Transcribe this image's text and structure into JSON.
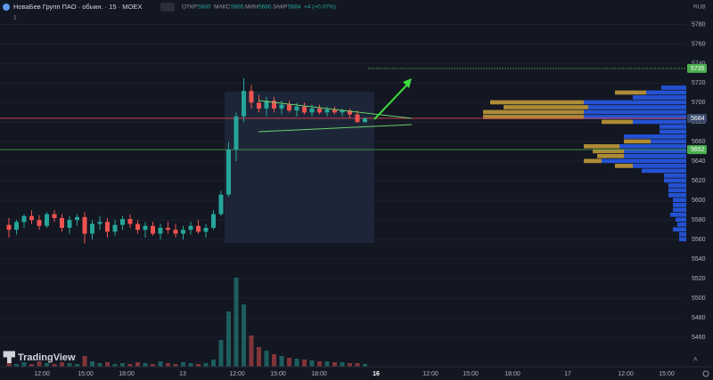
{
  "header": {
    "symbol": "НоваБев Групп ПАО · обыкн. · 15 · MOEX",
    "open_label": "ОТКР",
    "open": 5680,
    "high_label": "МАКС",
    "high": 5685,
    "low_label": "МИН",
    "low": 5680,
    "close_label": "ЗАКР",
    "close": 5684,
    "change": "+4 (+0.07%)",
    "indicator_count": "1",
    "currency": "RUB",
    "logo": "TradingView",
    "auto": "A"
  },
  "chart_data": {
    "type": "candlestick",
    "ohlc": [
      [
        5575,
        5582,
        5562,
        5570
      ],
      [
        5570,
        5580,
        5565,
        5578
      ],
      [
        5578,
        5586,
        5572,
        5584
      ],
      [
        5584,
        5590,
        5576,
        5580
      ],
      [
        5580,
        5585,
        5570,
        5574
      ],
      [
        5574,
        5588,
        5572,
        5586
      ],
      [
        5586,
        5590,
        5578,
        5582
      ],
      [
        5582,
        5586,
        5568,
        5572
      ],
      [
        5572,
        5584,
        5566,
        5580
      ],
      [
        5580,
        5586,
        5574,
        5583
      ],
      [
        5583,
        5588,
        5556,
        5566
      ],
      [
        5566,
        5580,
        5560,
        5576
      ],
      [
        5576,
        5584,
        5570,
        5578
      ],
      [
        5578,
        5582,
        5562,
        5568
      ],
      [
        5568,
        5580,
        5564,
        5575
      ],
      [
        5575,
        5584,
        5570,
        5581
      ],
      [
        5581,
        5586,
        5572,
        5576
      ],
      [
        5576,
        5580,
        5566,
        5570
      ],
      [
        5570,
        5578,
        5562,
        5574
      ],
      [
        5574,
        5578,
        5564,
        5566
      ],
      [
        5566,
        5576,
        5560,
        5572
      ],
      [
        5572,
        5578,
        5566,
        5570
      ],
      [
        5570,
        5576,
        5562,
        5566
      ],
      [
        5566,
        5574,
        5560,
        5570
      ],
      [
        5570,
        5578,
        5565,
        5574
      ],
      [
        5574,
        5580,
        5566,
        5568
      ],
      [
        5568,
        5576,
        5562,
        5572
      ],
      [
        5572,
        5590,
        5570,
        5586
      ],
      [
        5586,
        5610,
        5584,
        5606
      ],
      [
        5606,
        5660,
        5604,
        5652
      ],
      [
        5652,
        5690,
        5640,
        5686
      ],
      [
        5686,
        5725,
        5680,
        5712
      ],
      [
        5712,
        5718,
        5694,
        5700
      ],
      [
        5700,
        5708,
        5690,
        5694
      ],
      [
        5694,
        5706,
        5686,
        5702
      ],
      [
        5702,
        5706,
        5690,
        5694
      ],
      [
        5694,
        5702,
        5688,
        5698
      ],
      [
        5698,
        5702,
        5690,
        5692
      ],
      [
        5692,
        5700,
        5686,
        5696
      ],
      [
        5696,
        5700,
        5688,
        5690
      ],
      [
        5690,
        5698,
        5686,
        5694
      ],
      [
        5694,
        5698,
        5688,
        5690
      ],
      [
        5690,
        5696,
        5686,
        5693
      ],
      [
        5693,
        5696,
        5688,
        5690
      ],
      [
        5690,
        5694,
        5686,
        5692
      ],
      [
        5692,
        5694,
        5684,
        5688
      ],
      [
        5688,
        5692,
        5680,
        5680
      ],
      [
        5680,
        5685,
        5680,
        5684
      ]
    ],
    "volume": [
      4,
      3,
      5,
      3,
      6,
      4,
      3,
      5,
      4,
      3,
      12,
      6,
      4,
      5,
      3,
      4,
      3,
      5,
      4,
      3,
      6,
      4,
      3,
      5,
      4,
      3,
      4,
      8,
      30,
      62,
      100,
      70,
      35,
      22,
      18,
      14,
      12,
      10,
      9,
      8,
      7,
      6,
      6,
      5,
      5,
      4,
      4,
      3
    ],
    "volume_profile": [
      [
        5715,
        28,
        0
      ],
      [
        5710,
        45,
        35
      ],
      [
        5705,
        60,
        0
      ],
      [
        5700,
        115,
        105
      ],
      [
        5695,
        110,
        95
      ],
      [
        5690,
        115,
        113
      ],
      [
        5685,
        115,
        113
      ],
      [
        5680,
        60,
        35
      ],
      [
        5675,
        30,
        0
      ],
      [
        5670,
        30,
        0
      ],
      [
        5665,
        70,
        0
      ],
      [
        5660,
        40,
        30
      ],
      [
        5655,
        75,
        40
      ],
      [
        5650,
        70,
        35
      ],
      [
        5645,
        70,
        30
      ],
      [
        5640,
        95,
        20
      ],
      [
        5635,
        60,
        20
      ],
      [
        5630,
        50,
        0
      ],
      [
        5625,
        25,
        0
      ],
      [
        5620,
        25,
        0
      ],
      [
        5615,
        20,
        0
      ],
      [
        5610,
        20,
        0
      ],
      [
        5605,
        20,
        0
      ],
      [
        5600,
        15,
        0
      ],
      [
        5595,
        15,
        0
      ],
      [
        5590,
        15,
        0
      ],
      [
        5585,
        18,
        0
      ],
      [
        5580,
        12,
        0
      ],
      [
        5575,
        10,
        0
      ],
      [
        5570,
        15,
        0
      ],
      [
        5565,
        8,
        0
      ],
      [
        5560,
        8,
        0
      ]
    ],
    "up_color": "#26a69a",
    "down_color": "#ef5350",
    "profile_colors": [
      "#2962ff",
      "#c9a03a"
    ],
    "price_lines": [
      {
        "value": 5735,
        "color": "#4caf50"
      },
      {
        "value": 5684,
        "color": "#3a4a6b"
      },
      {
        "value": 5652,
        "color": "#4caf50"
      }
    ],
    "ylim": [
      5430,
      5805
    ],
    "yticks": [
      5460,
      5480,
      5500,
      5520,
      5540,
      5560,
      5580,
      5600,
      5620,
      5640,
      5660,
      5680,
      5700,
      5720,
      5740,
      5760,
      5780
    ],
    "grid": true,
    "xlabels": [
      "12:00",
      "15:00",
      "18:00",
      "13",
      "12:00",
      "15:00",
      "18:00",
      "16",
      "12:00",
      "15:00",
      "18:00",
      "17",
      "12:00",
      "15:00"
    ]
  }
}
